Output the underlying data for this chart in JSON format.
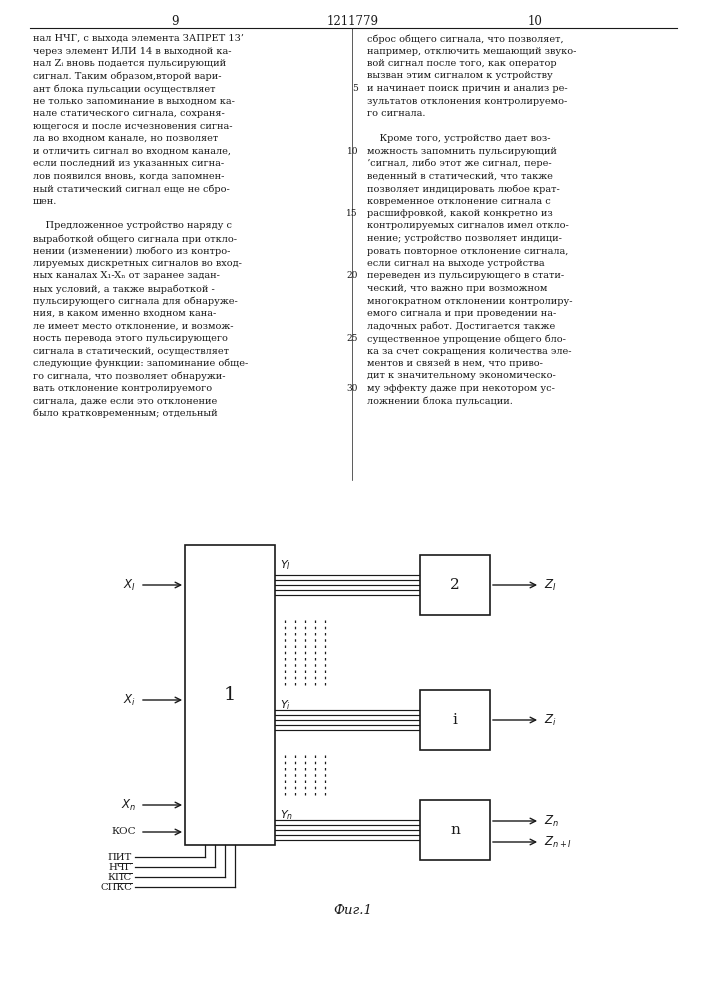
{
  "page_bg": "#ffffff",
  "text_color": "#1a1a1a",
  "line_color": "#1a1a1a",
  "page_num_left": "9",
  "page_num_center": "1211779",
  "page_num_right": "10",
  "fig_caption": "Фиг.1",
  "left_col_lines": [
    "нал НЧГ, с выхода элемента ЗАПРЕТ 13’",
    "через элемент ИЛИ 14 в выходной ка-",
    "нал Zᵢ вновь подается пульсирующий",
    "сигнал. Таким образом,второй вари-",
    "ант блока пульсации осуществляет",
    "не только запоминание в выходном ка-",
    "нале статического сигнала, сохраня-",
    "ющегося и после исчезновения сигна-",
    "ла во входном канале, но позволяет",
    "и отличить сигнал во входном канале,",
    "если последний из указанных сигна-",
    "лов появился вновь, когда запомнен-",
    "ный статический сигнал еще не сбро-",
    "шен.",
    "",
    "    Предложенное устройство наряду с",
    "выработкой общего сигнала при откло-",
    "нении (изменении) любого из контро-",
    "лируемых дискретных сигналов во вход-",
    "ных каналах X₁-Xₙ от заранее задан-",
    "ных условий, а также выработкой -",
    "пульсирующего сигнала для обнаруже-",
    "ния, в каком именно входном кана-",
    "ле имеет место отклонение, и возмож-",
    "ность перевода этого пульсирующего",
    "сигнала в статический, осуществляет",
    "следующие функции: запоминание обще-",
    "го сигнала, что позволяет обнаружи-",
    "вать отклонение контролируемого",
    "сигнала, даже если это отклонение",
    "было кратковременным; отдельный"
  ],
  "right_col_lines": [
    "сброс общего сигнала, что позволяет,",
    "например, отключить мешающий звуко-",
    "вой сигнал после того, как оператор",
    "вызван этим сигналом к устройству",
    "и начинает поиск причин и анализ ре-",
    "зультатов отклонения контролируемо-",
    "го сигнала.",
    "",
    "    Кроме того, устройство дает воз-",
    "можность запомнить пульсирующий",
    "ʼсигнал, либо этот же сигнал, пере-",
    "веденный в статический, что также",
    "позволяет индицировать любое крат-",
    "ковременное отклонение сигнала с",
    "расшифровкой, какой конкретно из",
    "контролируемых сигналов имел откло-",
    "нение; устройство позволяет индици-",
    "ровать повторное отклонение сигнала,",
    "если сигнал на выходе устройства",
    "переведен из пульсирующего в стати-",
    "ческий, что важно при возможном",
    "многократном отклонении контролиру-",
    "емого сигнала и при проведении на-",
    "ладочных работ. Достигается также",
    "существенное упрощение общего бло-",
    "ка за счет сокращения количества эле-",
    "ментов и связей в нем, что приво-",
    "дит к значительному экономическо-",
    "му эффекту даже при некотором ус-",
    "ложнении блока пульсации."
  ],
  "line_nums": [
    "5",
    "10",
    "15",
    "20",
    "25",
    "30"
  ]
}
